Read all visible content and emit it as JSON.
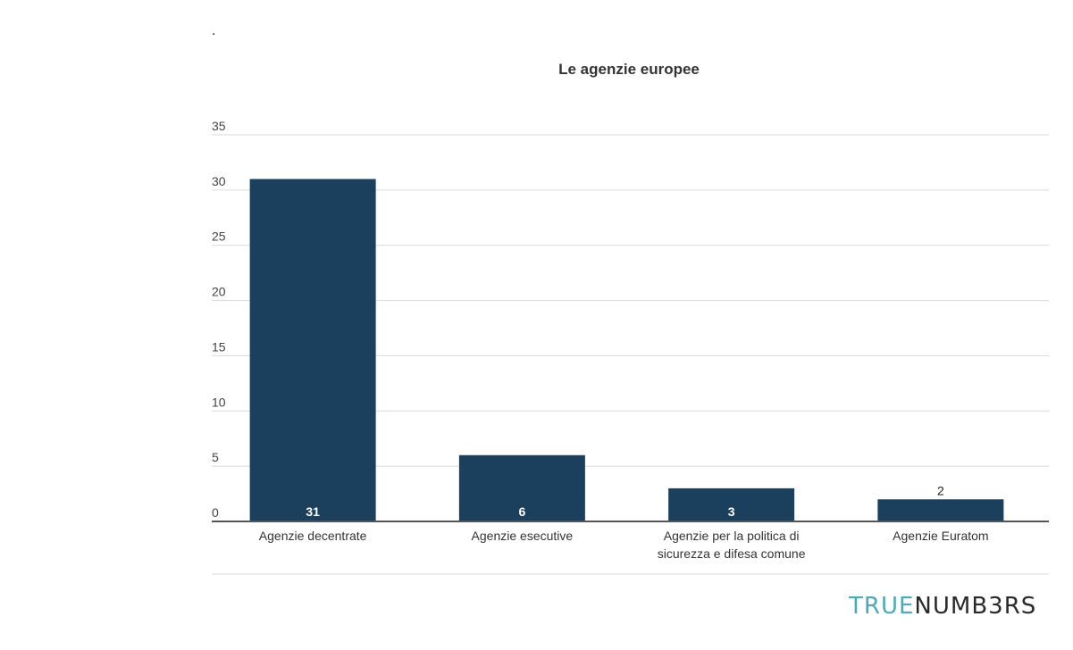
{
  "header_mark": ".",
  "brand": {
    "part1": "TRUE",
    "part2": "NUMB3RS"
  },
  "colors": {
    "bar": "#1a405e",
    "grid": "#d9d9d9",
    "axis": "#555555"
  },
  "chart_data": {
    "type": "bar",
    "title": "Le agenzie europee",
    "xlabel": "",
    "ylabel": "",
    "categories": [
      [
        "Agenzie decentrate"
      ],
      [
        "Agenzie esecutive"
      ],
      [
        "Agenzie per la politica di",
        "sicurezza e difesa comune"
      ],
      [
        "Agenzie Euratom"
      ]
    ],
    "values": [
      31,
      6,
      3,
      2
    ],
    "data_labels": [
      "31",
      "6",
      "3",
      "2"
    ],
    "yticks": [
      "0",
      "5",
      "10",
      "15",
      "20",
      "25",
      "30",
      "35"
    ],
    "ylim": [
      0,
      35
    ],
    "grid": true,
    "legend": "none"
  }
}
